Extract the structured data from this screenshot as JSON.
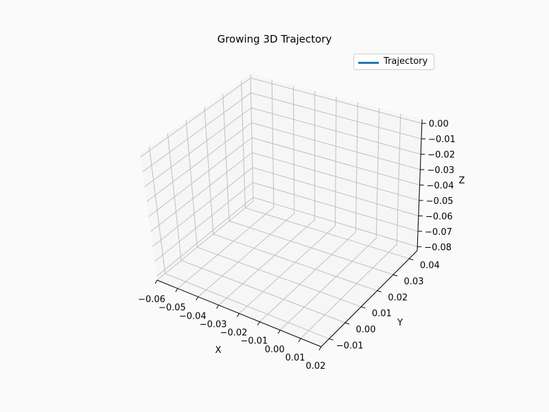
{
  "chart_data": {
    "type": "line",
    "title": "Growing 3D Trajectory",
    "projection": "3d",
    "xlabel": "X",
    "ylabel": "Y",
    "zlabel": "Z",
    "xlim": [
      -0.06,
      0.02
    ],
    "ylim": [
      -0.015,
      0.045
    ],
    "zlim": [
      -0.085,
      0.0
    ],
    "x_ticks": [
      "−0.06",
      "−0.05",
      "−0.04",
      "−0.03",
      "−0.02",
      "−0.01",
      "0.00",
      "0.01",
      "0.02"
    ],
    "y_ticks": [
      "−0.01",
      "0.00",
      "0.01",
      "0.02",
      "0.03",
      "0.04"
    ],
    "z_ticks": [
      "0.00",
      "−0.01",
      "−0.02",
      "−0.03",
      "−0.04",
      "−0.05",
      "−0.06",
      "−0.07",
      "−0.08"
    ],
    "grid": true,
    "legend_position": "top-right",
    "series": [
      {
        "name": "Trajectory",
        "color": "#1f77b4",
        "points": []
      }
    ]
  }
}
